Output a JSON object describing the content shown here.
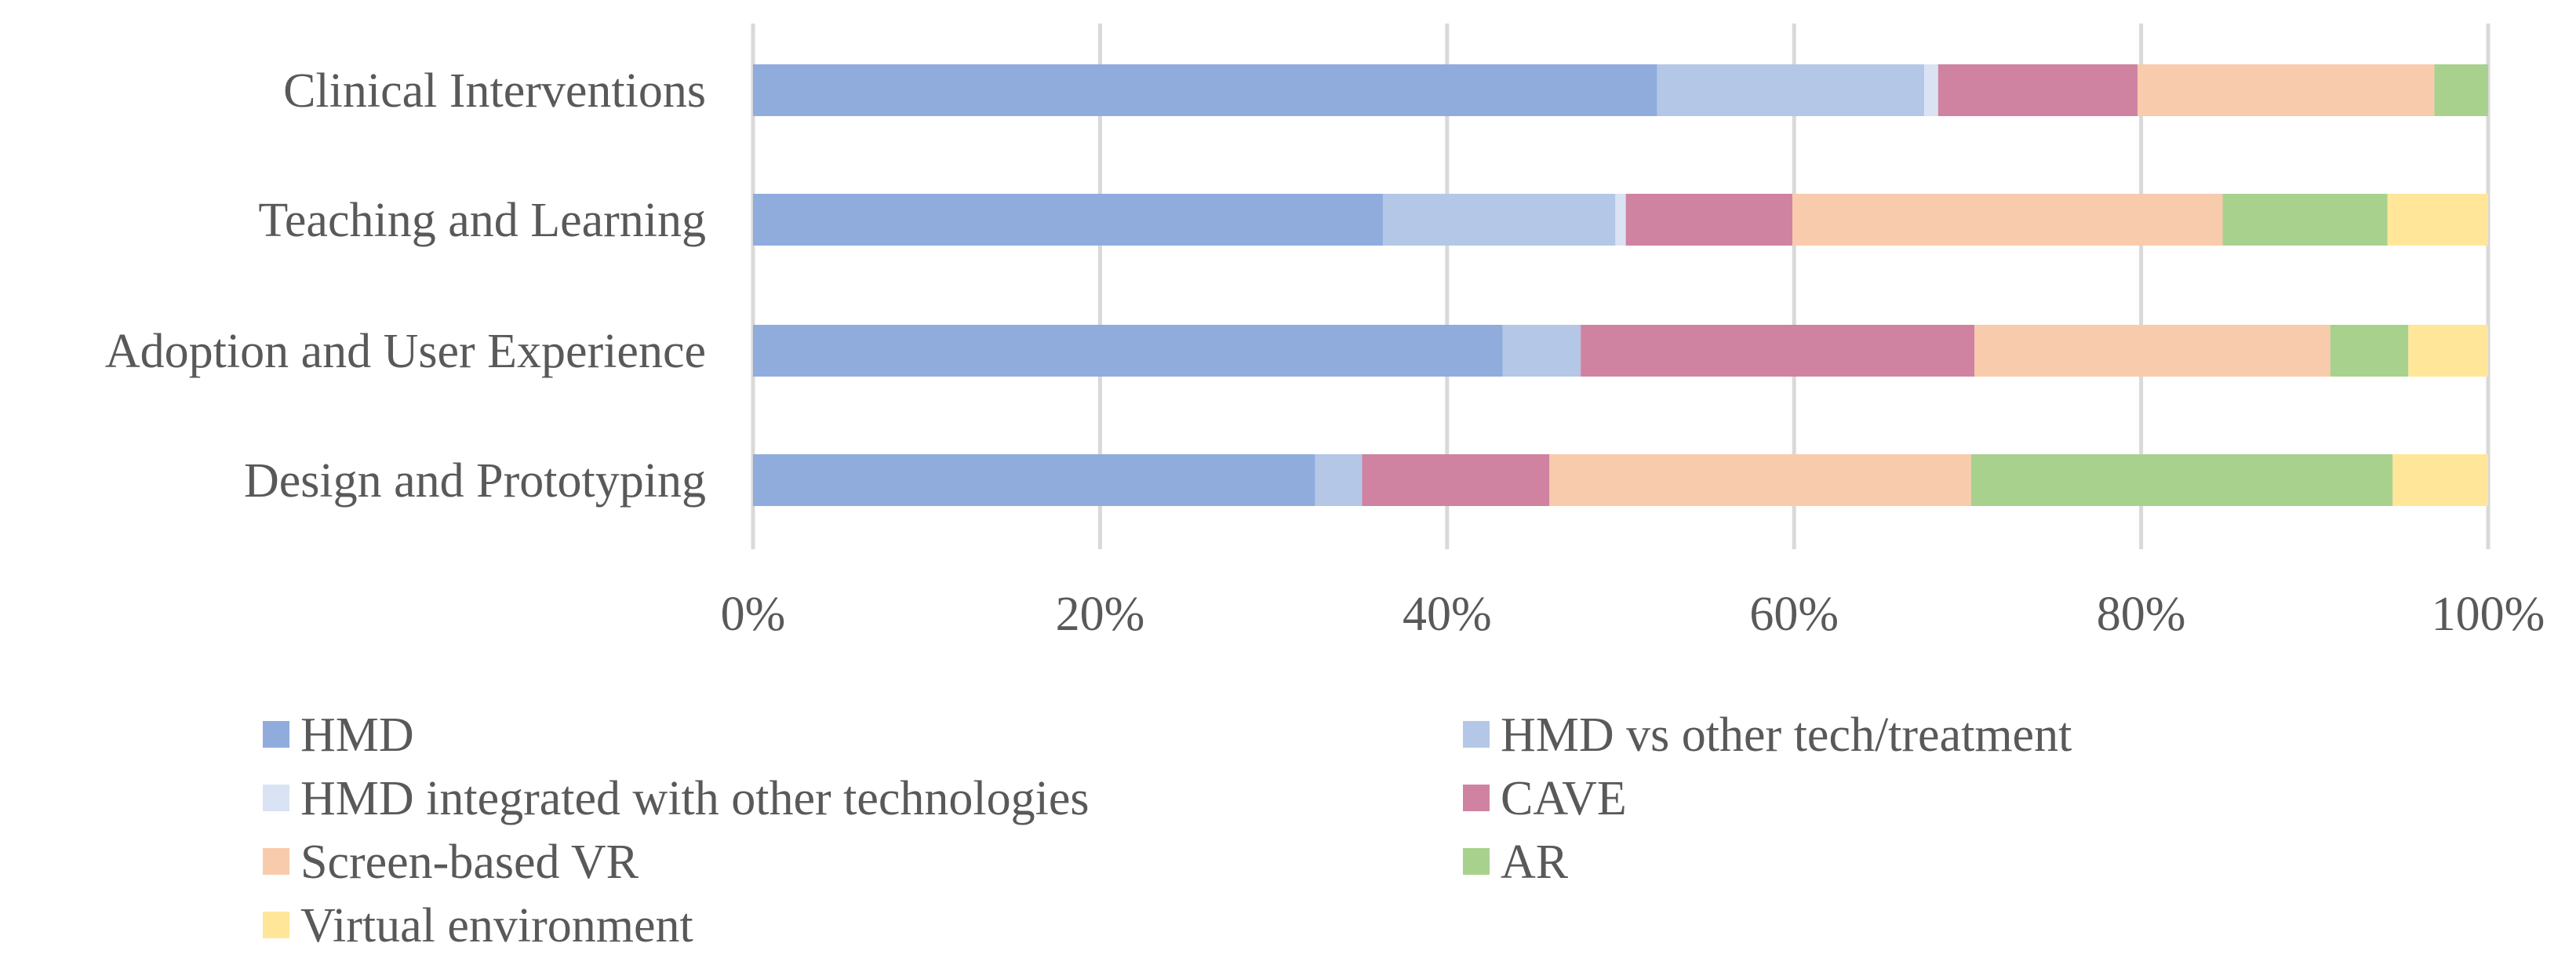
{
  "chart_data": {
    "type": "bar",
    "orientation": "horizontal",
    "stacked": "percent",
    "title": "",
    "xlabel": "",
    "ylabel": "",
    "xlim": [
      0,
      100
    ],
    "grid": true,
    "legend_position": "bottom",
    "categories": [
      "Clinical Interventions",
      "Teaching and Learning",
      "Adoption and User Experience",
      "Design and Prototyping"
    ],
    "ticks": [
      "0%",
      "20%",
      "40%",
      "60%",
      "80%",
      "100%"
    ],
    "tick_values": [
      0,
      20,
      40,
      60,
      80,
      100
    ],
    "series": [
      {
        "name": "HMD",
        "color": "#8FACDD",
        "values": [
          52.1,
          36.3,
          43.2,
          32.4
        ]
      },
      {
        "name": "HMD vs other tech/treatment",
        "color": "#B4C7E7",
        "values": [
          15.4,
          13.4,
          4.5,
          2.7
        ]
      },
      {
        "name": "HMD integrated with other technologies",
        "color": "#DAE3F3",
        "values": [
          0.8,
          0.6,
          0.0,
          0.0
        ]
      },
      {
        "name": "CAVE",
        "color": "#CF83A0",
        "values": [
          11.5,
          9.6,
          22.7,
          10.8
        ]
      },
      {
        "name": "Screen-based VR",
        "color": "#F8CBAD",
        "values": [
          17.1,
          24.8,
          20.5,
          24.3
        ]
      },
      {
        "name": "AR",
        "color": "#A9D18E",
        "values": [
          3.1,
          9.5,
          4.5,
          24.3
        ]
      },
      {
        "name": "Virtual environment",
        "color": "#FFE699",
        "values": [
          0.0,
          5.8,
          4.6,
          5.5
        ]
      }
    ]
  }
}
